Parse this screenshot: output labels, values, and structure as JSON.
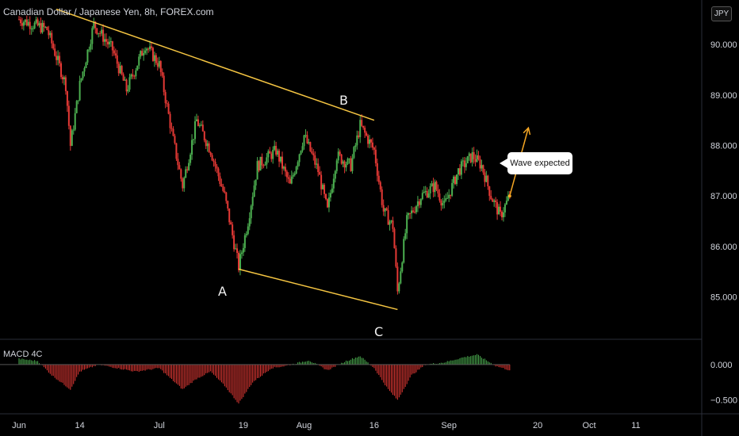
{
  "header": {
    "title": "Canadian Dollar / Japanese Yen, 8h, FOREX.com",
    "currency": "JPY"
  },
  "indicator": {
    "label": "MACD 4C"
  },
  "annotations": {
    "callout": "Wave expected",
    "wave_labels": [
      "A",
      "B",
      "C"
    ]
  },
  "colors": {
    "up": "#26a69a",
    "bullish_candle": "#4caf50",
    "bearish_candle": "#e53935",
    "trendline": "#f5c542",
    "background": "#000000"
  },
  "chart_data": {
    "type": "candlestick",
    "symbol": "CADJPY",
    "timeframe": "8h",
    "x_ticks": [
      "Jun",
      "14",
      "Jul",
      "19",
      "Aug",
      "16",
      "Sep",
      "20",
      "Oct",
      "11"
    ],
    "y_ticks": [
      "90.000",
      "89.000",
      "88.000",
      "87.000",
      "86.000",
      "85.000"
    ],
    "ylim": [
      84.6,
      90.6
    ],
    "close_path": [
      {
        "date": "Jun 1",
        "value": 90.5
      },
      {
        "date": "Jun 7",
        "value": 90.3
      },
      {
        "date": "Jun 11",
        "value": 89.2
      },
      {
        "date": "Jun 12",
        "value": 88.0
      },
      {
        "date": "Jun 14",
        "value": 89.2
      },
      {
        "date": "Jun 17",
        "value": 90.4
      },
      {
        "date": "Jun 21",
        "value": 89.9
      },
      {
        "date": "Jun 24",
        "value": 89.1
      },
      {
        "date": "Jun 28",
        "value": 90.0
      },
      {
        "date": "Jul 1",
        "value": 89.6
      },
      {
        "date": "Jul 4",
        "value": 88.1
      },
      {
        "date": "Jul 6",
        "value": 87.2
      },
      {
        "date": "Jul 9",
        "value": 88.5
      },
      {
        "date": "Jul 12",
        "value": 87.9
      },
      {
        "date": "Jul 15",
        "value": 87.0
      },
      {
        "date": "Jul 18",
        "value": 85.6
      },
      {
        "date": "Jul 20",
        "value": 86.5
      },
      {
        "date": "Jul 22",
        "value": 87.6
      },
      {
        "date": "Jul 26",
        "value": 87.9
      },
      {
        "date": "Jul 29",
        "value": 87.2
      },
      {
        "date": "Aug 1",
        "value": 88.2
      },
      {
        "date": "Aug 4",
        "value": 87.5
      },
      {
        "date": "Aug 6",
        "value": 86.7
      },
      {
        "date": "Aug 8",
        "value": 87.8
      },
      {
        "date": "Aug 11",
        "value": 87.6
      },
      {
        "date": "Aug 13",
        "value": 88.4
      },
      {
        "date": "Aug 16",
        "value": 87.9
      },
      {
        "date": "Aug 18",
        "value": 86.7
      },
      {
        "date": "Aug 20",
        "value": 86.4
      },
      {
        "date": "Aug 21",
        "value": 85.1
      },
      {
        "date": "Aug 23",
        "value": 86.5
      },
      {
        "date": "Aug 26",
        "value": 87.0
      },
      {
        "date": "Aug 29",
        "value": 87.2
      },
      {
        "date": "Aug 31",
        "value": 86.8
      },
      {
        "date": "Sep 3",
        "value": 87.5
      },
      {
        "date": "Sep 6",
        "value": 87.8
      },
      {
        "date": "Sep 8",
        "value": 87.6
      },
      {
        "date": "Sep 10",
        "value": 87.0
      },
      {
        "date": "Sep 12",
        "value": 86.6
      },
      {
        "date": "Sep 14",
        "value": 87.0
      }
    ],
    "trendlines": [
      {
        "from": {
          "date": "Jun 9",
          "value": 90.7
        },
        "to": {
          "date": "Aug 16",
          "value": 88.5
        }
      },
      {
        "from": {
          "date": "Jul 18",
          "value": 85.55
        },
        "to": {
          "date": "Aug 21",
          "value": 84.75
        }
      }
    ],
    "wave_points": [
      {
        "label": "A",
        "date": "Jul 18",
        "value": 85.55
      },
      {
        "label": "B",
        "date": "Aug 13",
        "value": 88.45
      },
      {
        "label": "C",
        "date": "Aug 21",
        "value": 85.05
      }
    ],
    "projection": {
      "from": {
        "date": "Sep 14",
        "value": 87.0
      },
      "to": {
        "date": "Sep 18",
        "value": 88.35
      }
    },
    "macd": {
      "yticks": [
        "0.000",
        "−0.500"
      ],
      "ylim": [
        -0.65,
        0.3
      ],
      "path": [
        {
          "date": "Jun 1",
          "value": 0.08
        },
        {
          "date": "Jun 5",
          "value": 0.05
        },
        {
          "date": "Jun 8",
          "value": -0.15
        },
        {
          "date": "Jun 12",
          "value": -0.35
        },
        {
          "date": "Jun 14",
          "value": -0.1
        },
        {
          "date": "Jun 18",
          "value": 0.0
        },
        {
          "date": "Jun 22",
          "value": -0.05
        },
        {
          "date": "Jun 26",
          "value": -0.1
        },
        {
          "date": "Jul 1",
          "value": -0.05
        },
        {
          "date": "Jul 6",
          "value": -0.35
        },
        {
          "date": "Jul 9",
          "value": -0.2
        },
        {
          "date": "Jul 12",
          "value": -0.1
        },
        {
          "date": "Jul 15",
          "value": -0.3
        },
        {
          "date": "Jul 18",
          "value": -0.55
        },
        {
          "date": "Jul 21",
          "value": -0.25
        },
        {
          "date": "Jul 25",
          "value": -0.05
        },
        {
          "date": "Jul 28",
          "value": -0.02
        },
        {
          "date": "Aug 2",
          "value": 0.06
        },
        {
          "date": "Aug 6",
          "value": -0.08
        },
        {
          "date": "Aug 10",
          "value": 0.05
        },
        {
          "date": "Aug 13",
          "value": 0.12
        },
        {
          "date": "Aug 16",
          "value": -0.05
        },
        {
          "date": "Aug 19",
          "value": -0.35
        },
        {
          "date": "Aug 21",
          "value": -0.5
        },
        {
          "date": "Aug 24",
          "value": -0.15
        },
        {
          "date": "Aug 27",
          "value": 0.0
        },
        {
          "date": "Aug 31",
          "value": 0.03
        },
        {
          "date": "Sep 4",
          "value": 0.1
        },
        {
          "date": "Sep 7",
          "value": 0.14
        },
        {
          "date": "Sep 11",
          "value": -0.02
        },
        {
          "date": "Sep 14",
          "value": -0.08
        }
      ]
    }
  }
}
